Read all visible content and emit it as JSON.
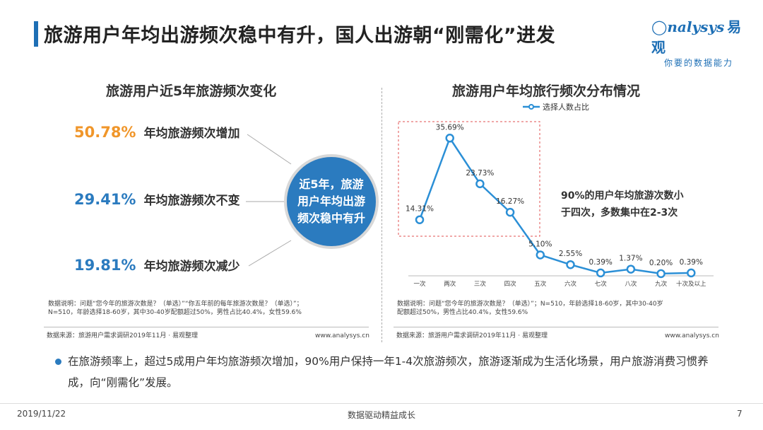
{
  "header": {
    "title": "旅游用户年均出游频次稳中有升，国人出游朝“刚需化”进发",
    "logo_en": "nalysys",
    "logo_cn": "易观",
    "logo_slogan": "你要的数据能力"
  },
  "left_panel": {
    "title": "旅游用户近5年旅游频次变化",
    "stats": [
      {
        "value": "50.78%",
        "label": "年均旅游频次增加",
        "color": "#f0962a"
      },
      {
        "value": "29.41%",
        "label": "年均旅游频次不变",
        "color": "#2b7bbf"
      },
      {
        "value": "19.81%",
        "label": "年均旅游频次减少",
        "color": "#2b7bbf"
      }
    ],
    "circle_text": [
      "近5年，旅游",
      "用户年均出游",
      "频次稳中有升"
    ],
    "note_lines": [
      "数据说明：问题“您今年的旅游次数是？（单选）”“你五年前的每年旅游次数是？（单选）”；",
      "N=510，年龄选择18-60岁，其中30-40岁配额超过50%，男性占比40.4%，女性59.6%"
    ],
    "source": "数据来源：旅游用户需求调研2019年11月 · 易观整理",
    "website": "www.analysys.cn"
  },
  "right_panel": {
    "title": "旅游用户年均旅行频次分布情况",
    "annotation_lines": [
      "90%的用户年均旅游次数小",
      "于四次，多数集中在2-3次"
    ],
    "note_lines": [
      "数据说明：问题“您今年的旅游次数是？（单选）”；N=510，年龄选择18-60岁，其中30-40岁",
      "配额超过50%，男性占比40.4%，女性59.6%"
    ],
    "source": "数据来源：旅游用户需求调研2019年11月 · 易观整理",
    "website": "www.analysys.cn"
  },
  "chart_data": {
    "type": "line",
    "title": "旅游用户年均旅行频次分布情况",
    "categories": [
      "一次",
      "两次",
      "三次",
      "四次",
      "五次",
      "六次",
      "七次",
      "八次",
      "九次",
      "十次及以上"
    ],
    "series": [
      {
        "name": "选择人数占比",
        "values": [
          14.31,
          35.69,
          23.73,
          16.27,
          5.1,
          2.55,
          0.39,
          1.37,
          0.2,
          0.39
        ],
        "color": "#2b8fd6"
      }
    ],
    "data_labels": [
      "14.31%",
      "35.69%",
      "23.73%",
      "16.27%",
      "5.10%",
      "2.55%",
      "0.39%",
      "1.37%",
      "0.20%",
      "0.39%"
    ],
    "ylim": [
      0,
      40
    ],
    "grid": false,
    "legend": "top"
  },
  "bullet_text": "在旅游频率上，超过5成用户年均旅游频次增加，90%用户保持一年1-4次旅游频次，旅游逐渐成为生活化场景，用户旅游消费习惯养成，向“刚需化”发展。",
  "footer": {
    "date": "2019/11/22",
    "center": "数据驱动精益成长",
    "page": "7"
  }
}
